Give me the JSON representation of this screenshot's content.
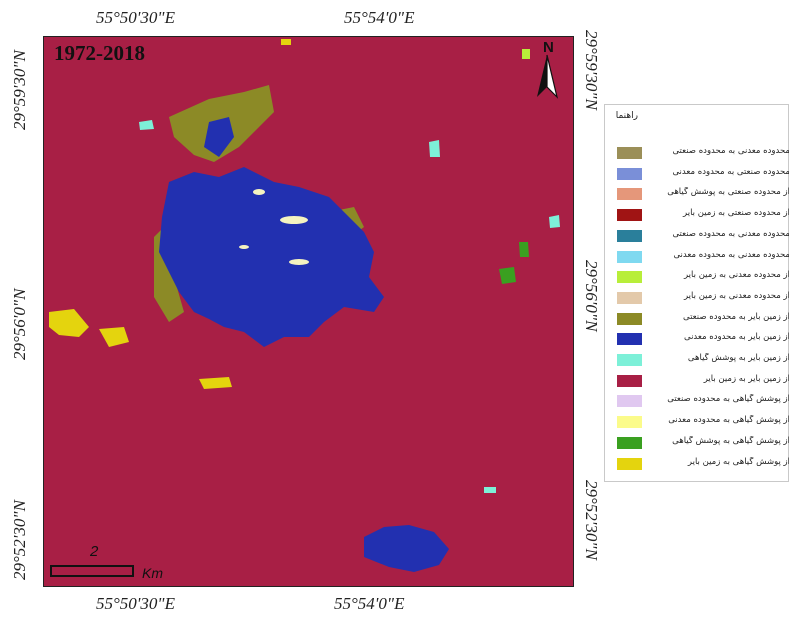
{
  "map": {
    "period": "1972-2018",
    "north_letter": "N",
    "scale_value": "2",
    "scale_unit": "Km",
    "background_class_color": "#a81f45"
  },
  "coordinates": {
    "top": [
      "55°50'30\"E",
      "55°54'0\"E"
    ],
    "bottom": [
      "55°50'30\"E",
      "55°54'0\"E"
    ],
    "left": [
      "29°59'30\"N",
      "29°56'0\"N",
      "29°52'30\"N"
    ],
    "right": [
      "29°59'30\"N",
      "29°56'0\"N",
      "29°52'30\"N"
    ]
  },
  "legend": {
    "title": "راهنما",
    "items": [
      {
        "color": "#9b8f58",
        "label": "محدوده معدنی به محدوده صنعتی"
      },
      {
        "color": "#7a8fd8",
        "label": "محدوده صنعتی به محدوده معدنی"
      },
      {
        "color": "#e5977a",
        "label": "از محدوده صنعتی به پوشش گیاهی"
      },
      {
        "color": "#a01414",
        "label": "از محدوده صنعتی به زمین بایر"
      },
      {
        "color": "#2a7f9b",
        "label": "محدوده معدنی به محدوده صنعتی"
      },
      {
        "color": "#7fd9f0",
        "label": "محدوده معدنی به محدوده معدنی"
      },
      {
        "color": "#b8ee3a",
        "label": "از محدوده معدنی به زمین بایر"
      },
      {
        "color": "#e3c9aa",
        "label": "از محدوده معدنی به زمین بایر"
      },
      {
        "color": "#8c8a26",
        "label": "از زمین بایر به محدوده صنعتی"
      },
      {
        "color": "#2230b0",
        "label": "از زمین بایر به محدوده معدنی"
      },
      {
        "color": "#7df0d8",
        "label": "از زمین بایر به پوشش گیاهی"
      },
      {
        "color": "#a81f45",
        "label": "از زمین بایر به زمین بایر"
      },
      {
        "color": "#e0c8f0",
        "label": "از پوشش گیاهی به محدوده صنعتی"
      },
      {
        "color": "#fbfb8a",
        "label": "از پوشش گیاهی به محدوده معدنی"
      },
      {
        "color": "#3aa020",
        "label": "از پوشش گیاهی به پوشش گیاهی"
      },
      {
        "color": "#e4d40e",
        "label": "از پوشش گیاهی به زمین بایر"
      }
    ]
  }
}
